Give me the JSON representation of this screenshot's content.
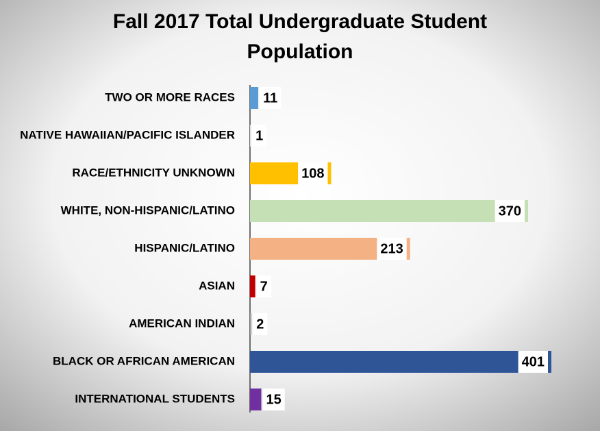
{
  "chart_data": {
    "type": "bar",
    "orientation": "horizontal",
    "title": "Fall 2017 Total Undergraduate Student Population",
    "categories": [
      "TWO OR MORE RACES",
      "NATIVE HAWAIIAN/PACIFIC ISLANDER",
      "RACE/ETHNICITY UNKNOWN",
      "WHITE, NON-HISPANIC/LATINO",
      "HISPANIC/LATINO",
      "ASIAN",
      "AMERICAN INDIAN",
      "BLACK OR AFRICAN AMERICAN",
      "INTERNATIONAL STUDENTS"
    ],
    "values": [
      11,
      1,
      108,
      370,
      213,
      7,
      2,
      401,
      15
    ],
    "colors": [
      "#5b9bd5",
      "#d9d9d9",
      "#ffc000",
      "#c5e0b4",
      "#f4b183",
      "#c00000",
      "#a5a5a5",
      "#2f5597",
      "#7030a0"
    ]
  }
}
